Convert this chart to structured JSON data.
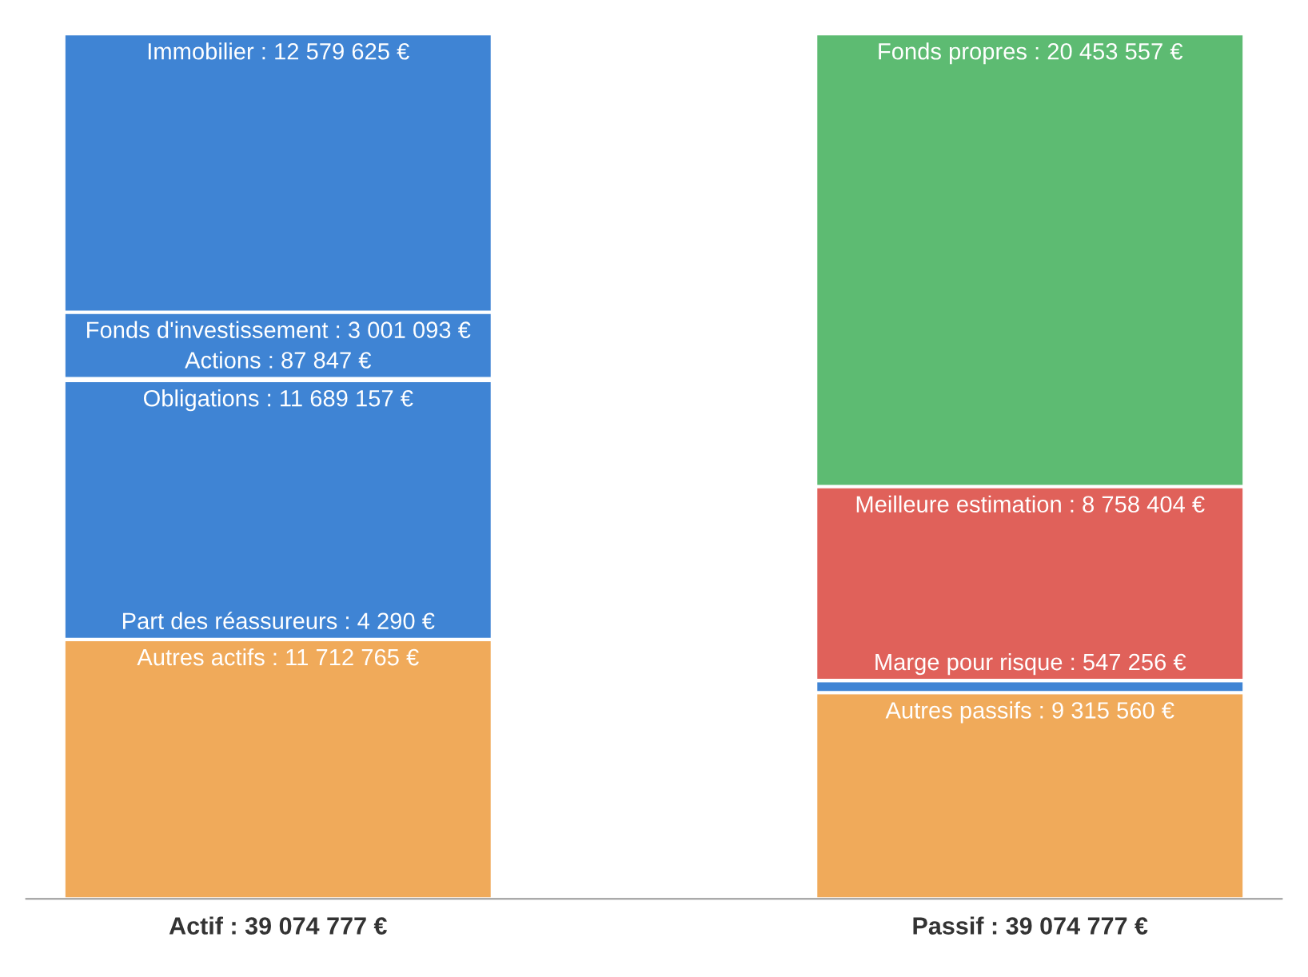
{
  "chart_data": {
    "type": "bar",
    "stacked": true,
    "grid": false,
    "legend": false,
    "categories": [
      "Actif : 39 074 777 €",
      "Passif : 39 074 777 €"
    ],
    "series": [
      {
        "color": "#f0aa5a",
        "values": [
          11712765,
          null
        ],
        "value_labels": [
          "Autres actifs : 11 712 765 €",
          null
        ]
      },
      {
        "color": "#e0615a",
        "values": [
          4290,
          null
        ],
        "value_labels": [
          "Part des réassureurs : 4 290 €",
          null
        ]
      },
      {
        "color": "#3f84d4",
        "values": [
          11689157,
          null
        ],
        "value_labels": [
          "Obligations : 11 689 157 €",
          null
        ]
      },
      {
        "color": "#3f84d4",
        "values": [
          87847,
          null
        ],
        "value_labels": [
          "Actions : 87 847 €",
          null
        ]
      },
      {
        "color": "#3f84d4",
        "values": [
          3001093,
          null
        ],
        "value_labels": [
          "Fonds d'investissement : 3 001 093 €",
          null
        ]
      },
      {
        "color": "#3f84d4",
        "values": [
          12579625,
          null
        ],
        "value_labels": [
          "Immobilier : 12 579 625 €",
          null
        ]
      },
      {
        "color": "#f0aa5a",
        "values": [
          null,
          9315560
        ],
        "value_labels": [
          null,
          "Autres passifs : 9 315 560 €"
        ]
      },
      {
        "color": "#3f84d4",
        "values": [
          null,
          547256
        ],
        "value_labels": [
          null,
          "Marge pour risque : 547 256 €"
        ]
      },
      {
        "color": "#e0615a",
        "values": [
          null,
          8758404
        ],
        "value_labels": [
          null,
          "Meilleure estimation : 8 758 404 €"
        ]
      },
      {
        "color": "#5dbb72",
        "values": [
          null,
          20453557
        ],
        "value_labels": [
          null,
          "Fonds propres : 20 453 557 €"
        ]
      }
    ]
  }
}
